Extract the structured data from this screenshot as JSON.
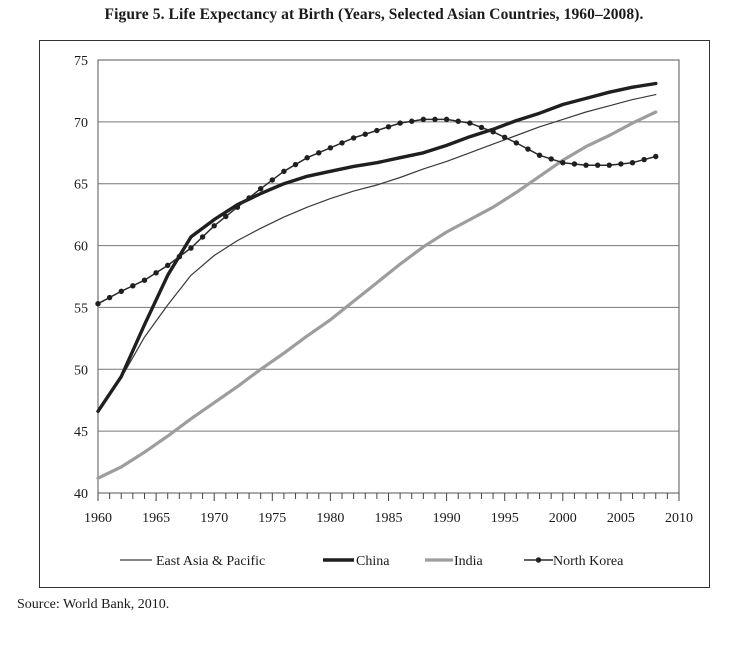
{
  "figure": {
    "title": "Figure 5.  Life Expectancy at Birth (Years, Selected Asian Countries, 1960–2008).",
    "source": "Source: World Bank, 2010."
  },
  "chart_data": {
    "type": "line",
    "title": "",
    "xlabel": "",
    "ylabel": "",
    "xlim": [
      1960,
      2010
    ],
    "ylim": [
      40,
      75
    ],
    "x_ticks": [
      1960,
      1965,
      1970,
      1975,
      1980,
      1985,
      1990,
      1995,
      2000,
      2005,
      2010
    ],
    "y_ticks": [
      40,
      45,
      50,
      55,
      60,
      65,
      70,
      75
    ],
    "grid": "horizontal",
    "legend_position": "bottom",
    "x": [
      1960,
      1962,
      1964,
      1966,
      1968,
      1970,
      1972,
      1974,
      1976,
      1978,
      1980,
      1982,
      1984,
      1986,
      1988,
      1990,
      1992,
      1994,
      1996,
      1998,
      2000,
      2002,
      2004,
      2006,
      2008
    ],
    "series": [
      {
        "name": "East Asia & Pacific",
        "color": "#333333",
        "style": "thin",
        "values": [
          46.6,
          49.3,
          52.6,
          55.2,
          57.6,
          59.2,
          60.4,
          61.4,
          62.3,
          63.1,
          63.8,
          64.4,
          64.9,
          65.5,
          66.2,
          66.8,
          67.5,
          68.2,
          68.9,
          69.6,
          70.2,
          70.8,
          71.3,
          71.8,
          72.2
        ]
      },
      {
        "name": "China",
        "color": "#222222",
        "style": "thick",
        "values": [
          46.6,
          49.4,
          53.6,
          57.6,
          60.7,
          62.1,
          63.3,
          64.2,
          65.0,
          65.6,
          66.0,
          66.4,
          66.7,
          67.1,
          67.5,
          68.1,
          68.8,
          69.4,
          70.1,
          70.7,
          71.4,
          71.9,
          72.4,
          72.8,
          73.1
        ]
      },
      {
        "name": "India",
        "color": "#999999",
        "style": "gray-thick",
        "values": [
          41.2,
          42.1,
          43.3,
          44.6,
          46.0,
          47.3,
          48.6,
          50.0,
          51.3,
          52.7,
          54.0,
          55.5,
          57.0,
          58.5,
          59.9,
          61.1,
          62.1,
          63.1,
          64.3,
          65.6,
          66.9,
          68.0,
          68.9,
          69.9,
          70.8
        ]
      },
      {
        "name": "North Korea",
        "color": "#222222",
        "style": "dotted-marker",
        "values": [
          55.3,
          56.3,
          57.2,
          58.4,
          59.8,
          61.6,
          63.1,
          64.6,
          66.0,
          67.1,
          67.9,
          68.7,
          69.3,
          69.9,
          70.2,
          70.2,
          69.9,
          69.2,
          68.3,
          67.3,
          66.7,
          66.5,
          66.5,
          66.7,
          67.2
        ]
      }
    ]
  }
}
